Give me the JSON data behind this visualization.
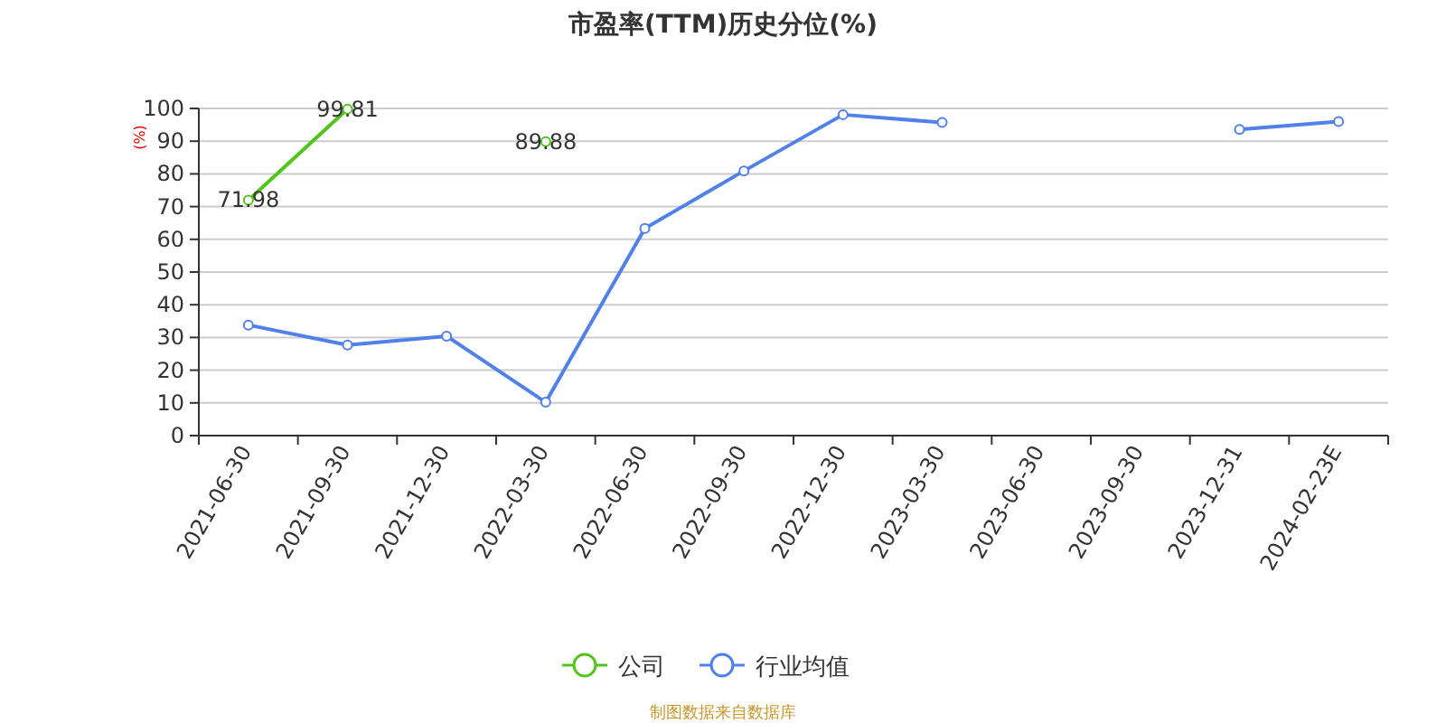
{
  "chart_data": {
    "type": "line",
    "title": "市盈率(TTM)历史分位(%)",
    "ylabel": "(%)",
    "categories": [
      "2021-06-30",
      "2021-09-30",
      "2021-12-30",
      "2022-03-30",
      "2022-06-30",
      "2022-09-30",
      "2022-12-30",
      "2023-03-30",
      "2023-06-30",
      "2023-09-30",
      "2023-12-31",
      "2024-02-23E"
    ],
    "series": [
      {
        "name": "公司",
        "color": "#52c41a",
        "values": [
          71.98,
          99.81,
          null,
          89.88,
          null,
          null,
          null,
          null,
          null,
          null,
          null,
          null
        ],
        "value_labels": [
          "71.98",
          "99.81",
          null,
          "89.88",
          null,
          null,
          null,
          null,
          null,
          null,
          null,
          null
        ]
      },
      {
        "name": "行业均值",
        "color": "#4f81e8",
        "values": [
          33.8,
          27.7,
          30.4,
          10.2,
          63.3,
          80.9,
          98.1,
          95.7,
          null,
          null,
          93.6,
          96.0
        ]
      }
    ],
    "ylim": [
      0,
      100
    ],
    "yticks": [
      0,
      10,
      20,
      30,
      40,
      50,
      60,
      70,
      80,
      90,
      100
    ],
    "grid": "y",
    "legend": "bottom",
    "marker": "circle",
    "annotations": [
      "制图数据来自数据库"
    ]
  }
}
